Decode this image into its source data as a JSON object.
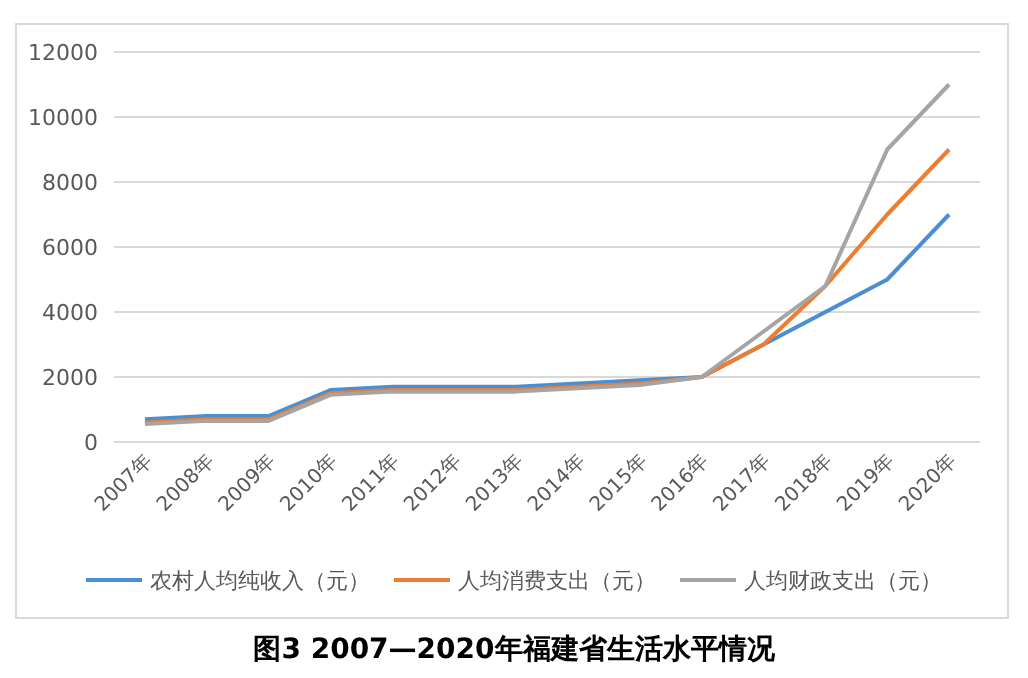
{
  "chart_data": {
    "type": "line",
    "title": "图3 2007—2020年福建省生活水平情况",
    "categories": [
      "2007年",
      "2008年",
      "2009年",
      "2010年",
      "2011年",
      "2012年",
      "2013年",
      "2014年",
      "2015年",
      "2016年",
      "2017年",
      "2018年",
      "2019年",
      "2020年"
    ],
    "series": [
      {
        "name": "农村人均纯收入（元）",
        "color": "#4a8fd4",
        "values": [
          700,
          800,
          800,
          1600,
          1700,
          1700,
          1700,
          1800,
          1900,
          2000,
          3000,
          4000,
          5000,
          7000
        ]
      },
      {
        "name": "人均消费支出（元）",
        "color": "#ed7d31",
        "values": [
          600,
          700,
          700,
          1500,
          1600,
          1600,
          1600,
          1700,
          1800,
          2000,
          3000,
          4800,
          7000,
          9000
        ]
      },
      {
        "name": "人均财政支出（元）",
        "color": "#a5a5a5",
        "values": [
          550,
          650,
          650,
          1450,
          1550,
          1550,
          1550,
          1650,
          1750,
          2000,
          3400,
          4800,
          9000,
          11000
        ]
      }
    ],
    "ylim": [
      0,
      12000
    ],
    "yticks": [
      0,
      2000,
      4000,
      6000,
      8000,
      10000,
      12000
    ],
    "grid": "y",
    "legend": "bottom",
    "marker": "none",
    "line_style": "solid"
  }
}
